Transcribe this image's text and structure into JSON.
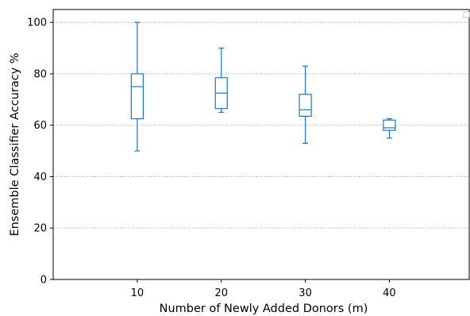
{
  "chart_data": {
    "type": "box",
    "xlabel": "Number of Newly Added Donors (m)",
    "ylabel": "Ensemble Classifier Accuracy %",
    "xlim": [
      0,
      49.5
    ],
    "ylim": [
      0,
      105
    ],
    "yticks": [
      0,
      20,
      40,
      60,
      80,
      100
    ],
    "categories": [
      "10",
      "20",
      "30",
      "40"
    ],
    "grid": "horizontal dotted",
    "legend": "top-right (empty)",
    "box_color": "#1f77b4",
    "median_color": "#1f77b4",
    "boxes": [
      {
        "x": 10,
        "label": "10",
        "whislo": 50,
        "q1": 62.5,
        "median": 75,
        "q3": 80,
        "whishi": 100
      },
      {
        "x": 20,
        "label": "20",
        "whislo": 65,
        "q1": 66.5,
        "median": 72.5,
        "q3": 78.5,
        "whishi": 90
      },
      {
        "x": 30,
        "label": "30",
        "whislo": 53,
        "q1": 63.5,
        "median": 66,
        "q3": 72,
        "whishi": 83
      },
      {
        "x": 40,
        "label": "40",
        "whislo": 55,
        "q1": 58,
        "median": 59,
        "q3": 62,
        "whishi": 62.5
      }
    ]
  }
}
